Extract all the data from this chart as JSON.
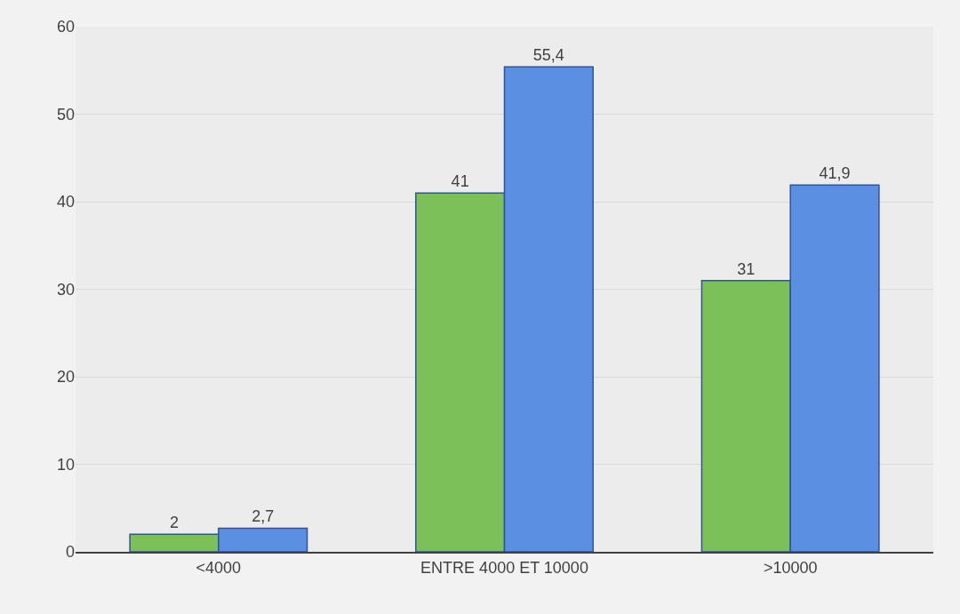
{
  "chart_data": {
    "type": "bar",
    "categories": [
      "<4000",
      "ENTRE 4000 ET 10000",
      ">10000"
    ],
    "series": [
      {
        "color": "#7cc05a",
        "values": [
          2,
          41,
          31
        ],
        "value_labels": [
          "2",
          "41",
          "31"
        ]
      },
      {
        "color": "#5b8fe2",
        "values": [
          2.7,
          55.4,
          41.9
        ],
        "value_labels": [
          "2,7",
          "55,4",
          "41,9"
        ]
      }
    ],
    "ylim": [
      0,
      60
    ],
    "yticks": [
      0,
      10,
      20,
      30,
      40,
      50,
      60
    ],
    "grid": "y"
  }
}
